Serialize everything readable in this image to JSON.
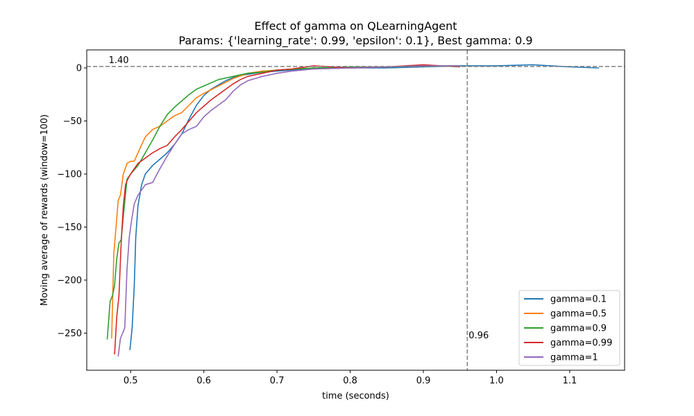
{
  "chart_data": {
    "type": "line",
    "title": "Effect of gamma on QLearningAgent",
    "subtitle": "Params: {'learning_rate': 0.99, 'epsilon': 0.1}, Best gamma: 0.9",
    "xlabel": "time (seconds)",
    "ylabel": "Moving average of rewards (window=100)",
    "xlim": [
      0.44,
      1.175
    ],
    "ylim": [
      -285,
      17
    ],
    "xticks": [
      0.5,
      0.6,
      0.7,
      0.8,
      0.9,
      1.0,
      1.1
    ],
    "xtick_labels": [
      "0.5",
      "0.6",
      "0.7",
      "0.8",
      "0.9",
      "1.0",
      "1.1"
    ],
    "yticks": [
      0,
      -50,
      -100,
      -150,
      -200,
      -250
    ],
    "ytick_labels": [
      "0",
      "−50",
      "−100",
      "−150",
      "−200",
      "−250"
    ],
    "grid": false,
    "legend_position": "lower right",
    "reference_lines": [
      {
        "orientation": "horizontal",
        "value": 1.4,
        "label": "1.40",
        "color": "#808080",
        "style": "dashed"
      },
      {
        "orientation": "vertical",
        "value": 0.96,
        "label": "0.96",
        "color": "#808080",
        "style": "dashed"
      }
    ],
    "series": [
      {
        "name": "gamma=0.1",
        "color": "#1f77b4",
        "x": [
          0.499,
          0.502,
          0.505,
          0.507,
          0.51,
          0.515,
          0.52,
          0.53,
          0.54,
          0.55,
          0.56,
          0.57,
          0.58,
          0.59,
          0.6,
          0.61,
          0.62,
          0.63,
          0.64,
          0.65,
          0.66,
          0.68,
          0.7,
          0.72,
          0.75,
          0.8,
          0.85,
          0.9,
          0.95,
          1.0,
          1.05,
          1.1,
          1.14
        ],
        "y": [
          -266,
          -245,
          -205,
          -160,
          -130,
          -110,
          -100,
          -92,
          -86,
          -80,
          -72,
          -62,
          -48,
          -35,
          -26,
          -20,
          -16,
          -12,
          -9,
          -7,
          -6,
          -4,
          -3,
          -2,
          -1,
          0,
          0,
          1,
          2,
          2,
          3,
          1,
          0
        ]
      },
      {
        "name": "gamma=0.5",
        "color": "#ff7f0e",
        "x": [
          0.474,
          0.477,
          0.48,
          0.483,
          0.486,
          0.49,
          0.495,
          0.5,
          0.505,
          0.51,
          0.52,
          0.53,
          0.54,
          0.55,
          0.56,
          0.57,
          0.58,
          0.59,
          0.6,
          0.62,
          0.64,
          0.66,
          0.68,
          0.7,
          0.75,
          0.8,
          0.85,
          0.9,
          0.95
        ],
        "y": [
          -255,
          -175,
          -150,
          -125,
          -120,
          -100,
          -90,
          -88,
          -88,
          -80,
          -65,
          -58,
          -55,
          -50,
          -45,
          -42,
          -35,
          -28,
          -24,
          -17,
          -10,
          -5,
          -3,
          -2,
          0,
          0,
          1,
          2,
          2
        ]
      },
      {
        "name": "gamma=0.9",
        "color": "#2ca02c",
        "x": [
          0.468,
          0.472,
          0.475,
          0.478,
          0.481,
          0.484,
          0.487,
          0.49,
          0.495,
          0.5,
          0.51,
          0.52,
          0.53,
          0.54,
          0.55,
          0.56,
          0.57,
          0.58,
          0.59,
          0.6,
          0.62,
          0.64,
          0.66,
          0.68,
          0.7,
          0.75,
          0.8,
          0.85,
          0.9,
          0.95
        ],
        "y": [
          -256,
          -220,
          -215,
          -205,
          -180,
          -165,
          -162,
          -140,
          -105,
          -100,
          -92,
          -80,
          -68,
          -55,
          -44,
          -37,
          -31,
          -25,
          -20,
          -17,
          -11,
          -8,
          -5,
          -4,
          -2,
          0,
          1,
          1,
          2,
          2
        ]
      },
      {
        "name": "gamma=0.99",
        "color": "#d62728",
        "x": [
          0.478,
          0.481,
          0.484,
          0.487,
          0.49,
          0.493,
          0.496,
          0.5,
          0.505,
          0.51,
          0.52,
          0.53,
          0.54,
          0.55,
          0.56,
          0.57,
          0.58,
          0.59,
          0.6,
          0.61,
          0.62,
          0.63,
          0.64,
          0.65,
          0.66,
          0.68,
          0.7,
          0.72,
          0.75,
          0.8,
          0.85,
          0.9,
          0.95
        ],
        "y": [
          -270,
          -235,
          -215,
          -165,
          -130,
          -110,
          -105,
          -100,
          -95,
          -90,
          -85,
          -80,
          -76,
          -73,
          -65,
          -58,
          -50,
          -42,
          -36,
          -30,
          -25,
          -20,
          -15,
          -11,
          -8,
          -5,
          -2,
          -1,
          2,
          0,
          1,
          3,
          1
        ]
      },
      {
        "name": "gamma=1",
        "color": "#9467bd",
        "x": [
          0.483,
          0.486,
          0.489,
          0.492,
          0.495,
          0.498,
          0.501,
          0.505,
          0.51,
          0.52,
          0.53,
          0.54,
          0.55,
          0.56,
          0.57,
          0.58,
          0.59,
          0.6,
          0.61,
          0.62,
          0.63,
          0.64,
          0.65,
          0.66,
          0.68,
          0.7,
          0.72,
          0.75,
          0.8,
          0.85,
          0.9,
          0.95
        ],
        "y": [
          -272,
          -255,
          -250,
          -245,
          -190,
          -160,
          -145,
          -128,
          -120,
          -110,
          -108,
          -95,
          -83,
          -72,
          -62,
          -58,
          -55,
          -46,
          -40,
          -35,
          -30,
          -22,
          -16,
          -12,
          -8,
          -5,
          -3,
          -1,
          0,
          1,
          2,
          2
        ]
      }
    ]
  }
}
